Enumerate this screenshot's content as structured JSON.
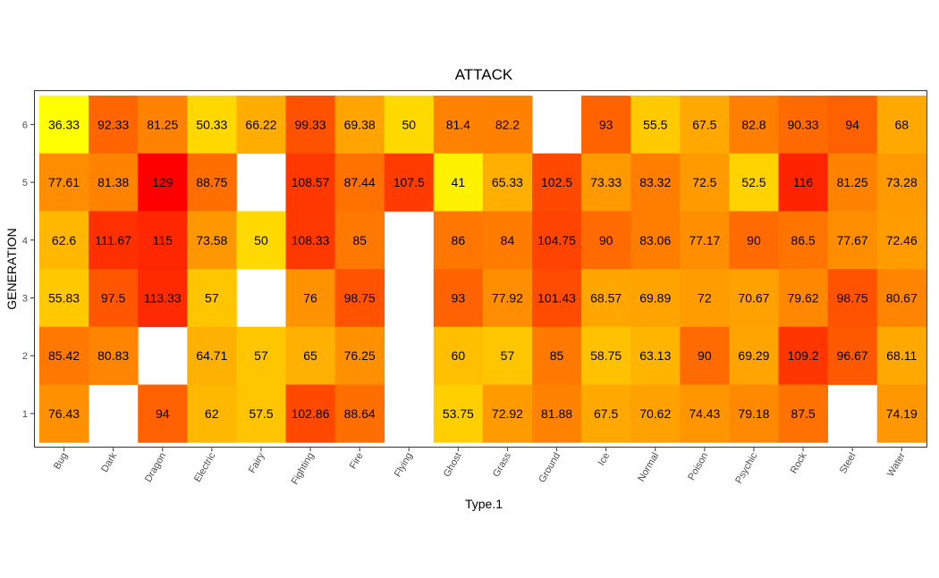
{
  "chart_data": {
    "type": "heatmap",
    "title": "ATTACK",
    "xlabel": "Type.1",
    "ylabel": "GENERATION",
    "x_categories": [
      "Bug",
      "Dark",
      "Dragon",
      "Electric",
      "Fairy",
      "Fighting",
      "Fire",
      "Flying",
      "Ghost",
      "Grass",
      "Ground",
      "Ice",
      "Normal",
      "Poison",
      "Psychic",
      "Rock",
      "Steel",
      "Water"
    ],
    "y_categories": [
      "1",
      "2",
      "3",
      "4",
      "5",
      "6"
    ],
    "color_scale": {
      "low": "#ffff00",
      "high": "#ff0000",
      "min": 36.33,
      "max": 129
    },
    "rows": [
      {
        "generation": "6",
        "values": [
          36.33,
          92.33,
          81.25,
          50.33,
          66.22,
          99.33,
          69.38,
          50,
          81.4,
          82.2,
          null,
          93,
          55.5,
          67.5,
          82.8,
          90.33,
          94,
          68
        ]
      },
      {
        "generation": "5",
        "values": [
          77.61,
          81.38,
          129,
          88.75,
          null,
          108.57,
          87.44,
          107.5,
          41,
          65.33,
          102.5,
          73.33,
          83.32,
          72.5,
          52.5,
          116,
          81.25,
          73.28
        ]
      },
      {
        "generation": "4",
        "values": [
          62.6,
          111.67,
          115,
          73.58,
          50,
          108.33,
          85,
          null,
          86,
          84,
          104.75,
          90,
          83.06,
          77.17,
          90,
          86.5,
          77.67,
          72.46
        ]
      },
      {
        "generation": "3",
        "values": [
          55.83,
          97.5,
          113.33,
          57,
          null,
          76,
          98.75,
          null,
          93,
          77.92,
          101.43,
          68.57,
          69.89,
          72,
          70.67,
          79.62,
          98.75,
          80.67
        ]
      },
      {
        "generation": "2",
        "values": [
          85.42,
          80.83,
          null,
          64.71,
          57,
          65,
          76.25,
          null,
          60,
          57,
          85,
          58.75,
          63.13,
          90,
          69.29,
          109.2,
          96.67,
          68.11
        ]
      },
      {
        "generation": "1",
        "values": [
          76.43,
          null,
          94,
          62,
          57.5,
          102.86,
          88.64,
          null,
          53.75,
          72.92,
          81.88,
          67.5,
          70.62,
          74.43,
          79.18,
          87.5,
          null,
          74.19
        ]
      }
    ]
  }
}
